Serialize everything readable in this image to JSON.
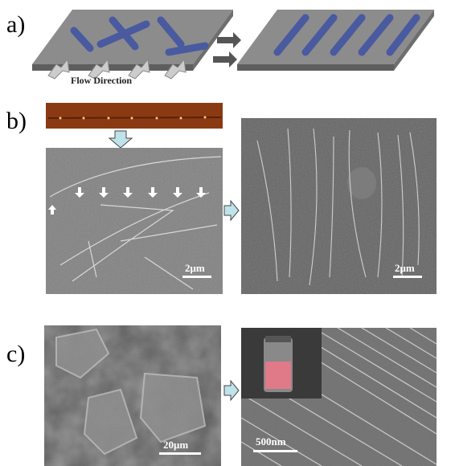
{
  "panels": [
    {
      "label": "a)",
      "caption": "Flow Direction"
    },
    {
      "label": "b)",
      "scale_bars": [
        "2μm",
        "2μm"
      ]
    },
    {
      "label": "c)",
      "scale_bars": [
        "20μm",
        "500nm"
      ]
    }
  ]
}
